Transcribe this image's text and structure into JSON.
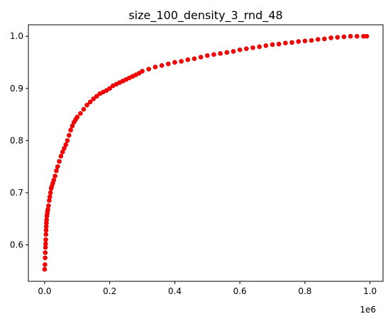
{
  "chart_data": {
    "type": "scatter",
    "title": "size_100_density_3_rnd_48",
    "xlabel": "",
    "ylabel": "",
    "x_offset_label": "1e6",
    "xlim": [
      -50000,
      1040000
    ],
    "ylim": [
      0.53,
      1.022
    ],
    "x_ticks": [
      0,
      200000,
      400000,
      600000,
      800000,
      1000000
    ],
    "x_tick_labels": [
      "0.0",
      "0.2",
      "0.4",
      "0.6",
      "0.8",
      "1.0"
    ],
    "y_ticks": [
      0.6,
      0.7,
      0.8,
      0.9,
      1.0
    ],
    "y_tick_labels": [
      "0.6",
      "0.7",
      "0.8",
      "0.9",
      "1.0"
    ],
    "grid": false,
    "legend": "none",
    "marker_color": "#ff0000",
    "marker_edge_color": "#cc0000",
    "series": [
      {
        "points": [
          [
            0,
            0.553
          ],
          [
            1000,
            0.562
          ],
          [
            1500,
            0.575
          ],
          [
            2000,
            0.585
          ],
          [
            2500,
            0.595
          ],
          [
            3000,
            0.602
          ],
          [
            3500,
            0.61
          ],
          [
            4000,
            0.62
          ],
          [
            4500,
            0.628
          ],
          [
            5000,
            0.635
          ],
          [
            5500,
            0.642
          ],
          [
            6000,
            0.648
          ],
          [
            7000,
            0.655
          ],
          [
            8000,
            0.66
          ],
          [
            9000,
            0.665
          ],
          [
            10000,
            0.668
          ],
          [
            12000,
            0.675
          ],
          [
            14000,
            0.685
          ],
          [
            16000,
            0.692
          ],
          [
            18000,
            0.7
          ],
          [
            20000,
            0.708
          ],
          [
            22000,
            0.712
          ],
          [
            25000,
            0.718
          ],
          [
            28000,
            0.724
          ],
          [
            32000,
            0.732
          ],
          [
            36000,
            0.742
          ],
          [
            40000,
            0.75
          ],
          [
            45000,
            0.76
          ],
          [
            50000,
            0.77
          ],
          [
            55000,
            0.778
          ],
          [
            60000,
            0.785
          ],
          [
            65000,
            0.792
          ],
          [
            70000,
            0.8
          ],
          [
            75000,
            0.81
          ],
          [
            80000,
            0.82
          ],
          [
            85000,
            0.828
          ],
          [
            90000,
            0.835
          ],
          [
            95000,
            0.84
          ],
          [
            100000,
            0.845
          ],
          [
            110000,
            0.852
          ],
          [
            120000,
            0.86
          ],
          [
            130000,
            0.868
          ],
          [
            140000,
            0.874
          ],
          [
            150000,
            0.88
          ],
          [
            160000,
            0.885
          ],
          [
            170000,
            0.89
          ],
          [
            180000,
            0.893
          ],
          [
            190000,
            0.896
          ],
          [
            200000,
            0.9
          ],
          [
            210000,
            0.905
          ],
          [
            220000,
            0.908
          ],
          [
            230000,
            0.911
          ],
          [
            240000,
            0.914
          ],
          [
            250000,
            0.917
          ],
          [
            260000,
            0.92
          ],
          [
            270000,
            0.923
          ],
          [
            280000,
            0.926
          ],
          [
            290000,
            0.929
          ],
          [
            300000,
            0.933
          ],
          [
            320000,
            0.937
          ],
          [
            340000,
            0.941
          ],
          [
            360000,
            0.944
          ],
          [
            380000,
            0.947
          ],
          [
            400000,
            0.95
          ],
          [
            420000,
            0.952
          ],
          [
            440000,
            0.955
          ],
          [
            460000,
            0.957
          ],
          [
            480000,
            0.96
          ],
          [
            500000,
            0.963
          ],
          [
            520000,
            0.965
          ],
          [
            540000,
            0.967
          ],
          [
            560000,
            0.969
          ],
          [
            580000,
            0.971
          ],
          [
            600000,
            0.974
          ],
          [
            620000,
            0.976
          ],
          [
            640000,
            0.978
          ],
          [
            660000,
            0.98
          ],
          [
            680000,
            0.982
          ],
          [
            700000,
            0.984
          ],
          [
            720000,
            0.985
          ],
          [
            740000,
            0.987
          ],
          [
            760000,
            0.988
          ],
          [
            780000,
            0.99
          ],
          [
            800000,
            0.991
          ],
          [
            820000,
            0.992
          ],
          [
            840000,
            0.994
          ],
          [
            860000,
            0.995
          ],
          [
            880000,
            0.997
          ],
          [
            900000,
            0.998
          ],
          [
            920000,
            0.999
          ],
          [
            940000,
            1.0
          ],
          [
            960000,
            1.0
          ],
          [
            980000,
            1.0
          ],
          [
            990000,
            1.0
          ]
        ]
      }
    ]
  }
}
